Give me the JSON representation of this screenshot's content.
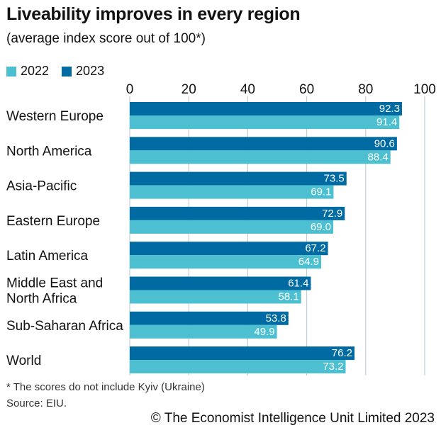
{
  "title": "Liveability improves in every region",
  "subtitle": "(average index score out of 100*)",
  "footnote": "* The scores do not include Kyiv (Ukraine)",
  "source": "Source: EIU.",
  "copyright": "© The Economist Intelligence Unit Limited 2023",
  "colors": {
    "2022": "#4cc0d0",
    "2023": "#006ba2",
    "grid": "#b7c6cf",
    "text": "#121212"
  },
  "chart_data": {
    "type": "bar",
    "orientation": "horizontal",
    "title": "Liveability improves in every region",
    "subtitle": "(average index score out of 100*)",
    "xlabel": "",
    "ylabel": "",
    "xlim": [
      0,
      100
    ],
    "xticks": [
      "0",
      "20",
      "40",
      "60",
      "80",
      "100"
    ],
    "grid": true,
    "legend": "top-left",
    "categories": [
      [
        "Western Europe"
      ],
      [
        "North America"
      ],
      [
        "Asia-Pacific"
      ],
      [
        "Eastern Europe"
      ],
      [
        "Latin America"
      ],
      [
        "Middle East and",
        "North Africa"
      ],
      [
        "Sub-Saharan Africa"
      ],
      [
        "World"
      ]
    ],
    "series": [
      {
        "name": "2023",
        "values": [
          92.3,
          90.6,
          73.5,
          72.9,
          67.2,
          61.4,
          53.8,
          76.2
        ],
        "labels": [
          "92.3",
          "90.6",
          "73.5",
          "72.9",
          "67.2",
          "61.4",
          "53.8",
          "76.2"
        ]
      },
      {
        "name": "2022",
        "values": [
          91.4,
          88.4,
          69.1,
          69.0,
          64.9,
          58.1,
          49.9,
          73.2
        ],
        "labels": [
          "91.4",
          "88.4",
          "69.1",
          "69.0",
          "64.9",
          "58.1",
          "49.9",
          "73.2"
        ]
      }
    ]
  }
}
